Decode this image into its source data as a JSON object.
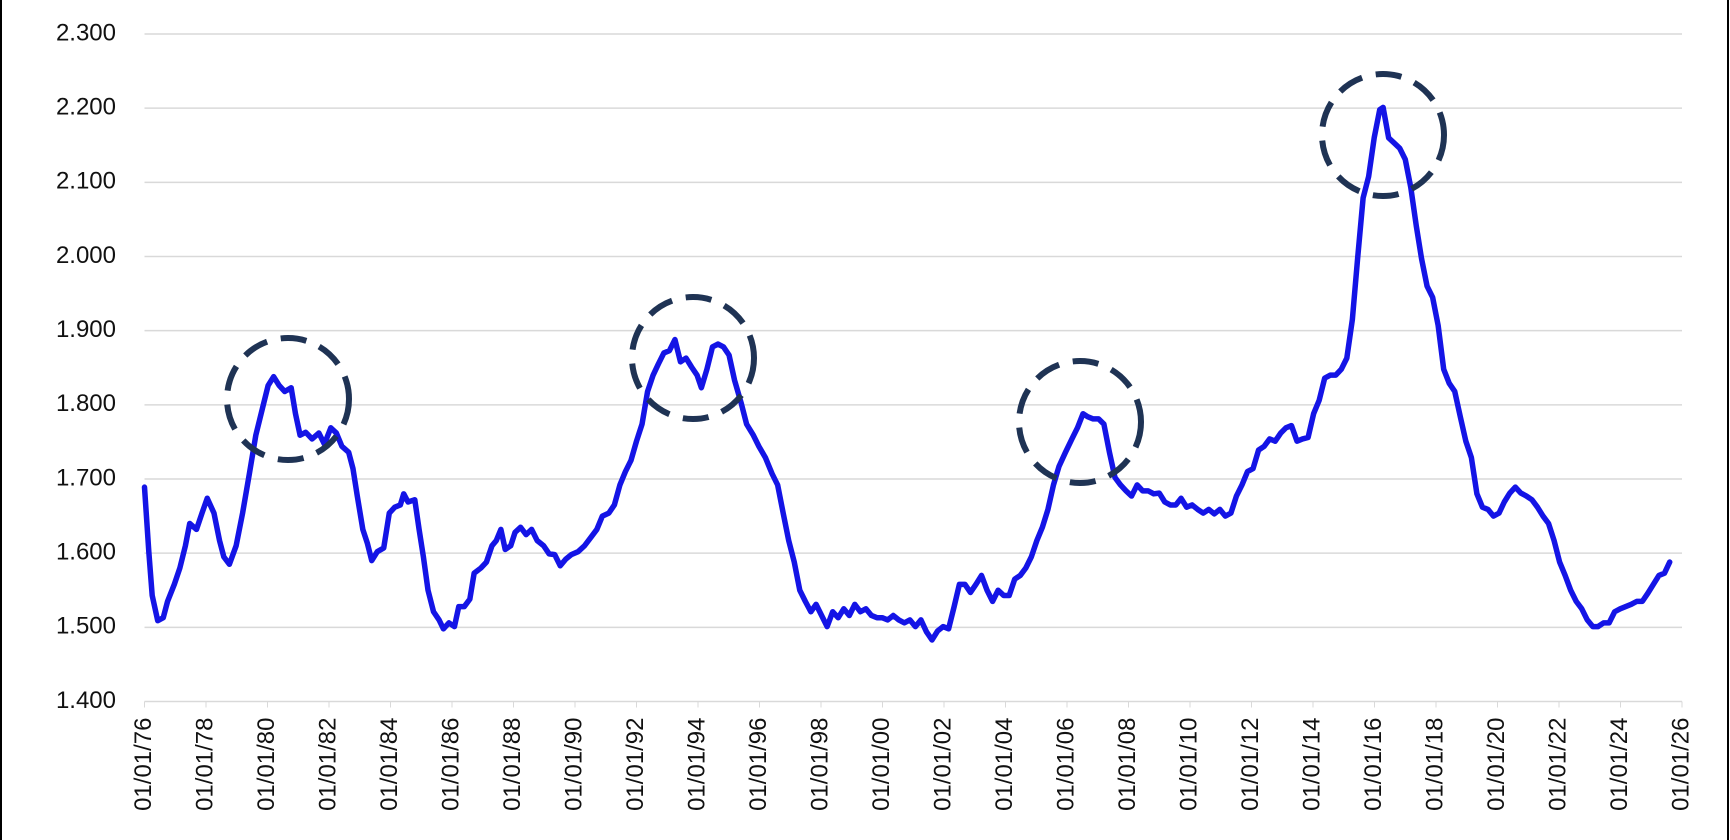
{
  "chart_data": {
    "type": "line",
    "color": "#1414e6",
    "grid": true,
    "ylim": [
      1.4,
      2.3
    ],
    "yticks": [
      {
        "value": 1.4,
        "label": "1.400"
      },
      {
        "value": 1.5,
        "label": "1.500"
      },
      {
        "value": 1.6,
        "label": "1.600"
      },
      {
        "value": 1.7,
        "label": "1.700"
      },
      {
        "value": 1.8,
        "label": "1.800"
      },
      {
        "value": 1.9,
        "label": "1.900"
      },
      {
        "value": 2.0,
        "label": "2.000"
      },
      {
        "value": 2.1,
        "label": "2.100"
      },
      {
        "value": 2.2,
        "label": "2.200"
      },
      {
        "value": 2.3,
        "label": "2.300"
      }
    ],
    "xlim": [
      1976,
      2026
    ],
    "xticks": [
      {
        "value": 1976,
        "label": "01/01/76"
      },
      {
        "value": 1978,
        "label": "01/01/78"
      },
      {
        "value": 1980,
        "label": "01/01/80"
      },
      {
        "value": 1982,
        "label": "01/01/82"
      },
      {
        "value": 1984,
        "label": "01/01/84"
      },
      {
        "value": 1986,
        "label": "01/01/86"
      },
      {
        "value": 1988,
        "label": "01/01/88"
      },
      {
        "value": 1990,
        "label": "01/01/90"
      },
      {
        "value": 1992,
        "label": "01/01/92"
      },
      {
        "value": 1994,
        "label": "01/01/94"
      },
      {
        "value": 1996,
        "label": "01/01/96"
      },
      {
        "value": 1998,
        "label": "01/01/98"
      },
      {
        "value": 2000,
        "label": "01/01/00"
      },
      {
        "value": 2002,
        "label": "01/01/02"
      },
      {
        "value": 2004,
        "label": "01/01/04"
      },
      {
        "value": 2006,
        "label": "01/01/06"
      },
      {
        "value": 2008,
        "label": "01/01/08"
      },
      {
        "value": 2010,
        "label": "01/01/10"
      },
      {
        "value": 2012,
        "label": "01/01/12"
      },
      {
        "value": 2014,
        "label": "01/01/14"
      },
      {
        "value": 2016,
        "label": "01/01/16"
      },
      {
        "value": 2018,
        "label": "01/01/18"
      },
      {
        "value": 2020,
        "label": "01/01/20"
      },
      {
        "value": 2022,
        "label": "01/01/22"
      },
      {
        "value": 2024,
        "label": "01/01/24"
      },
      {
        "value": 2026,
        "label": "01/01/26"
      }
    ],
    "x": [
      1976.0,
      1976.14,
      1976.25,
      1976.43,
      1976.61,
      1976.75,
      1976.97,
      1977.15,
      1977.33,
      1977.47,
      1977.69,
      1977.87,
      1978.04,
      1978.26,
      1978.44,
      1978.58,
      1978.76,
      1978.98,
      1979.19,
      1979.41,
      1979.62,
      1979.84,
      1980.02,
      1980.2,
      1980.38,
      1980.56,
      1980.77,
      1980.91,
      1981.06,
      1981.24,
      1981.45,
      1981.67,
      1981.85,
      1982.06,
      1982.24,
      1982.42,
      1982.64,
      1982.78,
      1982.92,
      1983.1,
      1983.25,
      1983.39,
      1983.57,
      1983.78,
      1983.96,
      1984.14,
      1984.32,
      1984.43,
      1984.57,
      1984.79,
      1984.93,
      1985.07,
      1985.22,
      1985.4,
      1985.58,
      1985.72,
      1985.9,
      1986.08,
      1986.22,
      1986.4,
      1986.58,
      1986.72,
      1986.94,
      1987.12,
      1987.3,
      1987.44,
      1987.59,
      1987.73,
      1987.91,
      1988.05,
      1988.23,
      1988.41,
      1988.59,
      1988.77,
      1988.98,
      1989.16,
      1989.34,
      1989.52,
      1989.7,
      1989.88,
      1990.1,
      1990.31,
      1990.53,
      1990.71,
      1990.89,
      1991.1,
      1991.28,
      1991.46,
      1991.64,
      1991.82,
      1992.0,
      1992.18,
      1992.36,
      1992.54,
      1992.71,
      1992.89,
      1993.07,
      1993.25,
      1993.43,
      1993.61,
      1993.79,
      1993.97,
      1994.11,
      1994.29,
      1994.47,
      1994.65,
      1994.83,
      1995.01,
      1995.19,
      1995.4,
      1995.58,
      1995.8,
      1995.98,
      1996.19,
      1996.41,
      1996.59,
      1996.77,
      1996.95,
      1997.13,
      1997.31,
      1997.49,
      1997.67,
      1997.84,
      1998.02,
      1998.2,
      1998.38,
      1998.56,
      1998.74,
      1998.92,
      1999.1,
      1999.28,
      1999.46,
      1999.64,
      1999.82,
      1999.99,
      2000.17,
      2000.35,
      2000.53,
      2000.71,
      2000.89,
      2001.07,
      2001.25,
      2001.43,
      2001.61,
      2001.79,
      2001.97,
      2002.15,
      2002.33,
      2002.5,
      2002.68,
      2002.86,
      2003.04,
      2003.22,
      2003.4,
      2003.58,
      2003.76,
      2003.94,
      2004.12,
      2004.3,
      2004.48,
      2004.66,
      2004.84,
      2005.02,
      2005.2,
      2005.38,
      2005.56,
      2005.74,
      2005.95,
      2006.16,
      2006.34,
      2006.52,
      2006.67,
      2006.85,
      2007.03,
      2007.2,
      2007.38,
      2007.56,
      2007.74,
      2007.92,
      2008.1,
      2008.28,
      2008.46,
      2008.64,
      2008.82,
      2009.0,
      2009.18,
      2009.36,
      2009.54,
      2009.71,
      2009.89,
      2010.07,
      2010.25,
      2010.43,
      2010.61,
      2010.79,
      2010.97,
      2011.15,
      2011.33,
      2011.51,
      2011.69,
      2011.87,
      2012.05,
      2012.23,
      2012.41,
      2012.59,
      2012.77,
      2012.95,
      2013.12,
      2013.3,
      2013.48,
      2013.66,
      2013.84,
      2014.02,
      2014.2,
      2014.38,
      2014.56,
      2014.74,
      2014.92,
      2015.1,
      2015.28,
      2015.45,
      2015.63,
      2015.81,
      2015.99,
      2016.17,
      2016.28,
      2016.46,
      2016.64,
      2016.82,
      2017.0,
      2017.18,
      2017.36,
      2017.53,
      2017.71,
      2017.89,
      2018.07,
      2018.25,
      2018.43,
      2018.61,
      2018.79,
      2018.97,
      2019.15,
      2019.33,
      2019.51,
      2019.69,
      2019.87,
      2020.05,
      2020.22,
      2020.4,
      2020.58,
      2020.76,
      2020.94,
      2021.12,
      2021.3,
      2021.48,
      2021.66,
      2021.84,
      2022.02,
      2022.2,
      2022.38,
      2022.56,
      2022.74,
      2022.92,
      2023.1,
      2023.27,
      2023.45,
      2023.63,
      2023.81,
      2023.99,
      2024.17,
      2024.35,
      2024.53,
      2024.71,
      2024.89,
      2025.07,
      2025.25,
      2025.43,
      2025.6
    ],
    "values": [
      1.689,
      1.602,
      1.543,
      1.509,
      1.513,
      1.535,
      1.558,
      1.58,
      1.61,
      1.64,
      1.632,
      1.654,
      1.674,
      1.654,
      1.617,
      1.595,
      1.585,
      1.61,
      1.654,
      1.707,
      1.759,
      1.796,
      1.826,
      1.838,
      1.826,
      1.818,
      1.823,
      1.788,
      1.759,
      1.763,
      1.754,
      1.762,
      1.747,
      1.769,
      1.762,
      1.744,
      1.736,
      1.714,
      1.677,
      1.632,
      1.613,
      1.59,
      1.602,
      1.607,
      1.654,
      1.662,
      1.665,
      1.68,
      1.669,
      1.672,
      1.632,
      1.595,
      1.55,
      1.521,
      1.51,
      1.498,
      1.506,
      1.501,
      1.528,
      1.528,
      1.538,
      1.573,
      1.58,
      1.588,
      1.61,
      1.617,
      1.632,
      1.605,
      1.61,
      1.628,
      1.635,
      1.625,
      1.632,
      1.617,
      1.61,
      1.599,
      1.598,
      1.583,
      1.592,
      1.598,
      1.602,
      1.61,
      1.622,
      1.632,
      1.65,
      1.654,
      1.665,
      1.692,
      1.71,
      1.725,
      1.751,
      1.774,
      1.818,
      1.84,
      1.855,
      1.87,
      1.873,
      1.888,
      1.858,
      1.863,
      1.851,
      1.84,
      1.823,
      1.848,
      1.878,
      1.882,
      1.878,
      1.867,
      1.833,
      1.803,
      1.774,
      1.759,
      1.744,
      1.729,
      1.707,
      1.692,
      1.654,
      1.617,
      1.588,
      1.55,
      1.535,
      1.521,
      1.531,
      1.516,
      1.501,
      1.521,
      1.513,
      1.525,
      1.516,
      1.531,
      1.521,
      1.525,
      1.516,
      1.513,
      1.513,
      1.51,
      1.516,
      1.51,
      1.506,
      1.51,
      1.501,
      1.51,
      1.494,
      1.483,
      1.495,
      1.501,
      1.498,
      1.528,
      1.558,
      1.558,
      1.547,
      1.558,
      1.57,
      1.55,
      1.535,
      1.55,
      1.543,
      1.543,
      1.565,
      1.57,
      1.58,
      1.595,
      1.617,
      1.635,
      1.659,
      1.692,
      1.717,
      1.736,
      1.754,
      1.769,
      1.788,
      1.784,
      1.781,
      1.781,
      1.774,
      1.736,
      1.702,
      1.692,
      1.684,
      1.677,
      1.692,
      1.684,
      1.684,
      1.68,
      1.681,
      1.669,
      1.665,
      1.665,
      1.674,
      1.662,
      1.665,
      1.659,
      1.654,
      1.659,
      1.653,
      1.659,
      1.65,
      1.654,
      1.677,
      1.692,
      1.71,
      1.714,
      1.739,
      1.744,
      1.754,
      1.751,
      1.762,
      1.769,
      1.772,
      1.751,
      1.754,
      1.756,
      1.788,
      1.806,
      1.836,
      1.84,
      1.84,
      1.848,
      1.863,
      1.915,
      1.997,
      2.079,
      2.108,
      2.16,
      2.198,
      2.201,
      2.16,
      2.153,
      2.146,
      2.131,
      2.093,
      2.041,
      1.997,
      1.96,
      1.945,
      1.907,
      1.848,
      1.829,
      1.818,
      1.784,
      1.751,
      1.729,
      1.68,
      1.662,
      1.659,
      1.65,
      1.654,
      1.669,
      1.681,
      1.689,
      1.681,
      1.677,
      1.672,
      1.662,
      1.65,
      1.64,
      1.617,
      1.588,
      1.57,
      1.55,
      1.535,
      1.525,
      1.51,
      1.501,
      1.501,
      1.506,
      1.506,
      1.521,
      1.525,
      1.528,
      1.531,
      1.535,
      1.535,
      1.546,
      1.558,
      1.57,
      1.573,
      1.588
    ]
  }
}
